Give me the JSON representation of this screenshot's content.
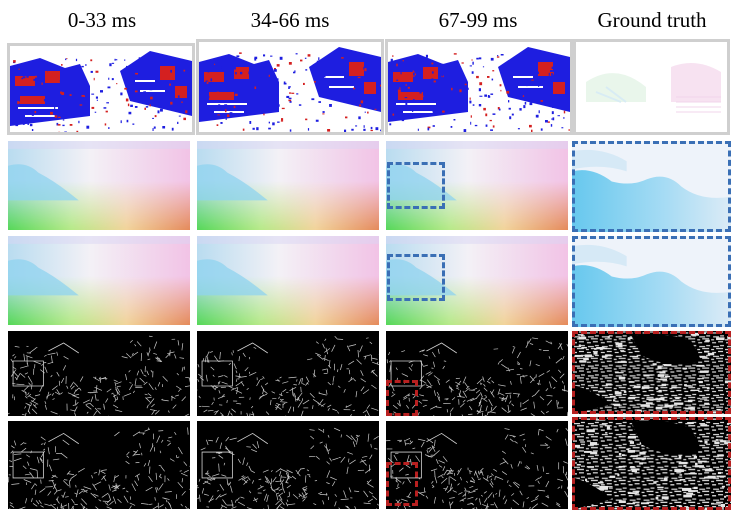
{
  "figure": {
    "column_titles": [
      "0-33 ms",
      "34-66 ms",
      "67-99 ms",
      "Ground truth"
    ],
    "row_kinds": [
      "event-frame",
      "optical-flow",
      "optical-flow",
      "edge-map",
      "edge-map"
    ],
    "colors": {
      "event_positive": "#1e1ee0",
      "event_negative": "#d42020",
      "flow_highlight": "#3a6fb5",
      "edge_highlight": "#b82020",
      "frame_border": "#cfcfcf"
    }
  }
}
